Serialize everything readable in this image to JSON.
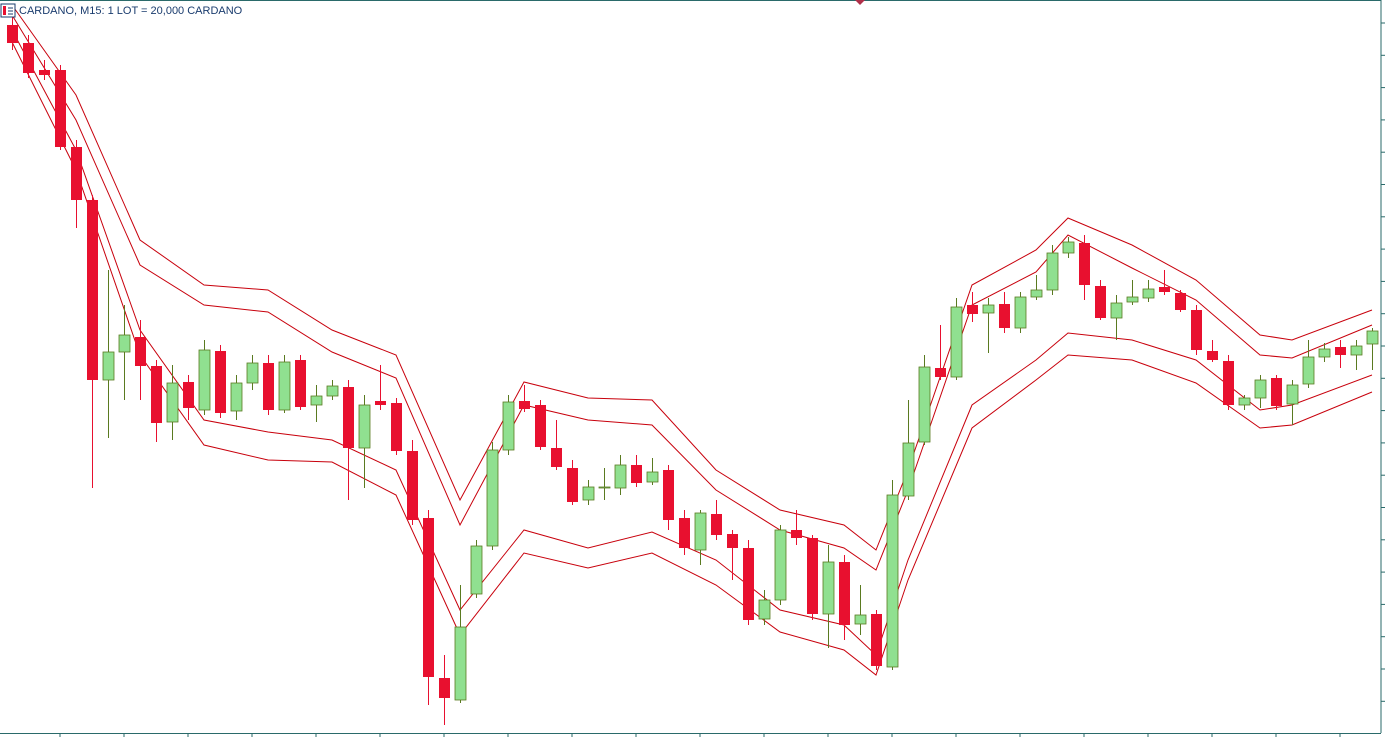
{
  "chart_data": {
    "type": "candlestick",
    "title": "CARDANO, M15:  1 LOT = 20,000 CARDANO",
    "ylim": [
      0,
      737
    ],
    "up_color": "#90e090",
    "down_color": "#e8102f",
    "band_color": "#c8000c",
    "open": [
      712,
      694,
      667,
      667,
      590,
      537,
      357,
      385,
      400,
      371,
      315,
      355,
      327,
      386,
      326,
      354,
      374,
      327,
      377,
      332,
      341,
      350,
      289,
      336,
      334,
      286,
      219,
      59,
      37,
      143,
      191,
      287,
      336,
      332,
      289,
      269,
      237,
      250,
      249,
      272,
      255,
      267,
      219,
      187,
      223,
      203,
      189,
      118,
      137,
      207,
      199,
      123,
      175,
      113,
      123,
      70,
      241,
      295,
      369,
      360,
      432,
      424,
      433,
      409,
      440,
      447,
      484,
      494,
      451,
      419,
      435,
      439,
      450,
      444,
      427,
      386,
      376,
      332,
      339,
      359,
      333,
      353,
      380,
      390,
      382,
      393
    ],
    "high": [
      722,
      702,
      677,
      672,
      597,
      542,
      467,
      432,
      417,
      377,
      372,
      362,
      397,
      392,
      362,
      382,
      382,
      382,
      382,
      352,
      357,
      357,
      342,
      372,
      339,
      297,
      227,
      82,
      152,
      197,
      295,
      342,
      352,
      337,
      317,
      277,
      257,
      269,
      282,
      282,
      279,
      272,
      227,
      227,
      237,
      207,
      197,
      147,
      212,
      227,
      202,
      192,
      182,
      152,
      127,
      257,
      337,
      382,
      412,
      439,
      445,
      439,
      445,
      445,
      462,
      492,
      500,
      502,
      457,
      442,
      457,
      457,
      467,
      447,
      432,
      397,
      382,
      342,
      362,
      362,
      357,
      397,
      394,
      397,
      397,
      409
    ],
    "low": [
      687,
      659,
      657,
      587,
      509,
      249,
      299,
      337,
      337,
      295,
      297,
      317,
      322,
      319,
      317,
      347,
      322,
      324,
      327,
      315,
      337,
      237,
      249,
      327,
      282,
      212,
      32,
      12,
      34,
      139,
      187,
      282,
      325,
      287,
      267,
      232,
      232,
      237,
      242,
      250,
      252,
      207,
      182,
      172,
      197,
      157,
      112,
      112,
      132,
      192,
      117,
      89,
      97,
      102,
      67,
      67,
      237,
      292,
      357,
      357,
      415,
      384,
      404,
      404,
      437,
      442,
      479,
      437,
      417,
      397,
      432,
      435,
      442,
      425,
      382,
      375,
      327,
      327,
      329,
      327,
      312,
      349,
      375,
      369,
      367,
      367
    ],
    "close": [
      694,
      664,
      662,
      590,
      537,
      357,
      385,
      402,
      371,
      314,
      354,
      329,
      387,
      324,
      354,
      374,
      327,
      375,
      330,
      341,
      351,
      289,
      332,
      332,
      286,
      217,
      60,
      39,
      110,
      191,
      287,
      335,
      328,
      290,
      270,
      235,
      250,
      250,
      272,
      254,
      265,
      217,
      189,
      224,
      202,
      189,
      117,
      137,
      207,
      199,
      123,
      175,
      112,
      122,
      71,
      242,
      294,
      370,
      360,
      430,
      423,
      432,
      409,
      440,
      447,
      484,
      495,
      452,
      419,
      434,
      440,
      448,
      445,
      427,
      387,
      377,
      332,
      339,
      357,
      331,
      352,
      380,
      388,
      382,
      391,
      406
    ],
    "bands": [
      {
        "x": [
          0,
          4,
          8,
          12,
          16,
          20,
          24,
          28,
          32,
          36,
          40,
          44,
          48,
          52,
          54,
          56,
          60,
          64,
          66,
          70,
          74,
          78,
          80,
          85
        ],
        "values": [
          732,
          642,
          497,
          452,
          447,
          407,
          382,
          237,
          355,
          339,
          337,
          267,
          227,
          212,
          187,
          267,
          452,
          487,
          519,
          492,
          457,
          402,
          397,
          427
        ]
      },
      {
        "x": [
          0,
          4,
          8,
          12,
          16,
          20,
          24,
          28,
          32,
          36,
          40,
          44,
          48,
          52,
          54,
          56,
          60,
          64,
          66,
          70,
          74,
          78,
          80,
          85
        ],
        "values": [
          722,
          617,
          472,
          432,
          425,
          385,
          359,
          212,
          332,
          317,
          312,
          247,
          207,
          189,
          167,
          247,
          432,
          465,
          502,
          469,
          437,
          382,
          379,
          412
        ]
      },
      {
        "x": [
          0,
          4,
          8,
          12,
          16,
          20,
          24,
          28,
          32,
          36,
          40,
          44,
          48,
          52,
          54,
          56,
          60,
          64,
          66,
          70,
          74,
          78,
          80,
          85
        ],
        "values": [
          707,
          587,
          407,
          317,
          305,
          297,
          267,
          127,
          207,
          189,
          205,
          177,
          127,
          112,
          82,
          177,
          332,
          377,
          404,
          397,
          377,
          327,
          332,
          362
        ]
      },
      {
        "x": [
          0,
          4,
          8,
          12,
          16,
          20,
          24,
          28,
          32,
          36,
          40,
          44,
          48,
          52,
          54,
          56,
          60,
          64,
          66,
          70,
          74,
          78,
          80,
          85
        ],
        "values": [
          695,
          567,
          382,
          292,
          277,
          275,
          242,
          102,
          184,
          169,
          184,
          152,
          105,
          87,
          62,
          157,
          309,
          357,
          382,
          377,
          354,
          309,
          312,
          345
        ]
      }
    ]
  }
}
